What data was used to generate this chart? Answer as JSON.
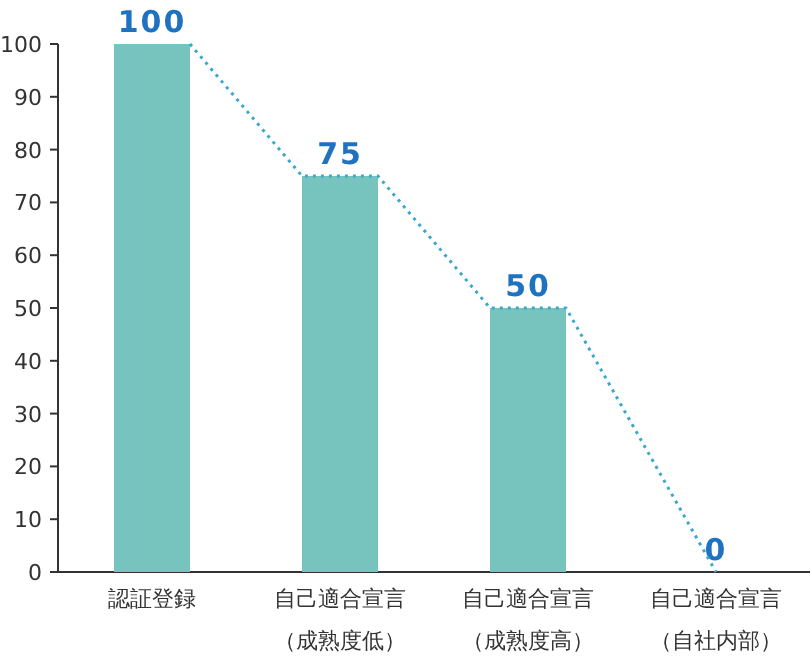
{
  "chart_data": {
    "type": "bar",
    "categories": [
      "認証登録",
      "自己適合宣言（成熟度低）",
      "自己適合宣言（成熟度高）",
      "自己適合宣言（自社内部）"
    ],
    "series": [
      {
        "color": "#76c4bd",
        "values": [
          100,
          75,
          50,
          0
        ]
      }
    ],
    "ylim": [
      0,
      100
    ],
    "yticks": [
      0,
      10,
      20,
      30,
      40,
      50,
      60,
      70,
      80,
      90,
      100
    ],
    "data_labels": true
  }
}
